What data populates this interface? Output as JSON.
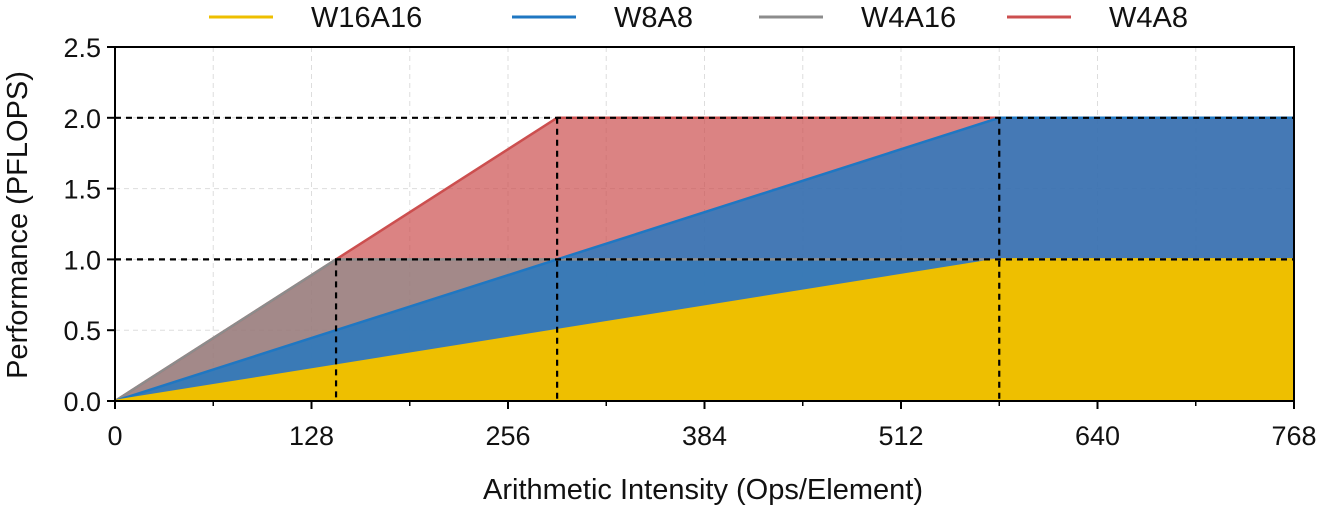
{
  "chart_data": {
    "type": "area",
    "title": "",
    "xlabel": "Arithmetic Intensity (Ops/Element)",
    "ylabel": "Performance (PFLOPS)",
    "xlim": [
      0,
      768
    ],
    "ylim": [
      0,
      2.5
    ],
    "xticks": [
      0,
      128,
      256,
      384,
      512,
      640,
      768
    ],
    "yticks": [
      0.0,
      0.5,
      1.0,
      1.5,
      2.0,
      2.5
    ],
    "ytick_labels": [
      "0.0",
      "0.5",
      "1.0",
      "1.5",
      "2.0",
      "2.5"
    ],
    "grid": true,
    "legend_position": "top",
    "series": [
      {
        "name": "W16A16",
        "color": "#EEBF00",
        "x": [
          0,
          576,
          768
        ],
        "y": [
          0,
          1.0,
          1.0
        ]
      },
      {
        "name": "W8A8",
        "color": "#1F77C2",
        "x": [
          0,
          576,
          768
        ],
        "y": [
          0,
          2.0,
          2.0
        ]
      },
      {
        "name": "W4A16",
        "color": "#8C8C8C",
        "x": [
          0,
          144,
          768
        ],
        "y": [
          0,
          1.0,
          1.0
        ]
      },
      {
        "name": "W4A8",
        "color": "#CC4F4F",
        "x": [
          0,
          288,
          768
        ],
        "y": [
          0,
          2.0,
          2.0
        ]
      }
    ],
    "reference_lines": {
      "horizontal": [
        1.0,
        2.0
      ],
      "vertical": [
        {
          "x": 144,
          "y_top": 1.0
        },
        {
          "x": 288,
          "y_top": 2.0
        },
        {
          "x": 576,
          "y_top": 2.0
        }
      ]
    }
  }
}
